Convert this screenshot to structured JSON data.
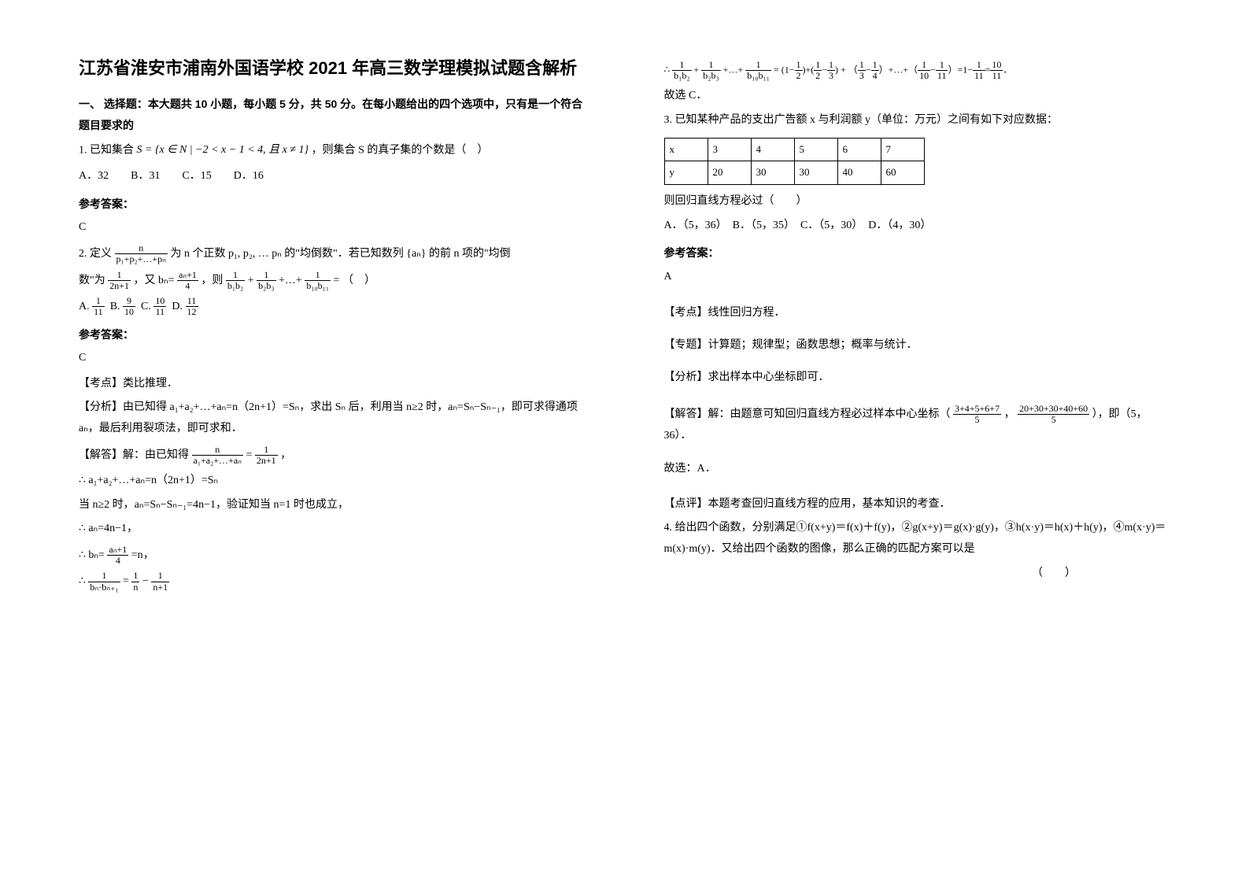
{
  "title": "江苏省淮安市浦南外国语学校 2021 年高三数学理模拟试题含解析",
  "section1_heading": "一、 选择题：本大题共 10 小题，每小题 5 分，共 50 分。在每小题给出的四个选项中，只有是一个符合题目要求的",
  "q1": {
    "stem_pre": "1. 已知集合 ",
    "set_expr": "S = {x ∈ N | −2 < x − 1 < 4,  且 x ≠ 1}",
    "stem_post": "，则集合 S 的真子集的个数是（　）",
    "options": "A．32　　B．31　　C．15　　D．16",
    "answer": "C"
  },
  "answer_label": "参考答案：",
  "q2": {
    "stem_l1_a": "2. 定义",
    "frac1_num": "n",
    "frac1_den": "p₁+p₂+…+pₙ",
    "stem_l1_b": "为 n 个正数 p₁, p₂, … pₙ 的\"均倒数\"．若已知数列 {aₙ} 的前 n 项的\"均倒",
    "stem_l2_a": "数\"为",
    "frac2_num": "1",
    "frac2_den": "2n+1",
    "stem_l2_b": "，又",
    "bn_eq": "bₙ=",
    "frac3_num": "aₙ+1",
    "frac3_den": "4",
    "stem_l2_c": "，则",
    "sum_terms": " = （　）",
    "opt_a_num": "1",
    "opt_a_den": "11",
    "opt_b_num": "9",
    "opt_b_den": "10",
    "opt_c_num": "10",
    "opt_c_den": "11",
    "opt_d_num": "11",
    "opt_d_den": "12",
    "answer": "C",
    "tag_point": "【考点】类比推理．",
    "analysis": "【分析】由已知得 a₁+a₂+…+aₙ=n（2n+1）=Sₙ，求出 Sₙ 后，利用当 n≥2 时，aₙ=Sₙ−Sₙ₋₁，即可求得通项 aₙ，最后利用裂项法，即可求和．",
    "sol_l1": "【解答】解：由已知得",
    "sol_frac1_num": "n",
    "sol_frac1_den": "a₁+a₂+…+aₙ",
    "sol_eq": "=",
    "sol_frac2_num": "1",
    "sol_frac2_den": "2n+1",
    "sol_l2": "∴ a₁+a₂+…+aₙ=n（2n+1）=Sₙ",
    "sol_l3": "当 n≥2 时，aₙ=Sₙ−Sₙ₋₁=4n−1，验证知当 n=1 时也成立，",
    "sol_l4": "∴ aₙ=4n−1，",
    "sol_l5_pre": "∴ ",
    "sol_l5_bn": "bₙ=",
    "sol_l5_num": "aₙ+1",
    "sol_l5_den": "4",
    "sol_l5_post": "=n",
    "sol_l6_pre": "∴ ",
    "sol_l6_f1n": "1",
    "sol_l6_f1d": "bₙ·bₙ₊₁",
    "sol_l6_eq": "=",
    "sol_l6_f2n": "1",
    "sol_l6_f2d": "n",
    "sol_l6_minus": " − ",
    "sol_l6_f3n": "1",
    "sol_l6_f3d": "n+1"
  },
  "col2_top": {
    "pre": "∴ ",
    "t1n": "1",
    "t1d": "b₁b₂",
    "plus1": "+",
    "t2n": "1",
    "t2d": "b₂b₃",
    "dots": "+…+",
    "t3n": "1",
    "t3d": "b₁₀b₁₁",
    "eq1": " = ",
    "p1": "(1−",
    "f1n": "1",
    "f1d": "2",
    "p1b": ")+(",
    "f2n": "1",
    "f2d": "2",
    "minus": "−",
    "f3n": "1",
    "f3d": "3",
    "p2": ") + （",
    "f4n": "1",
    "f4d": "3",
    "m2": "−",
    "f5n": "1",
    "f5d": "4",
    "p3": "）+…+（",
    "f6n": "1",
    "f6d": "10",
    "m3": "−",
    "f7n": "1",
    "f7d": "11",
    "p4": "）=1−",
    "f8n": "1",
    "f8d": "11",
    "eq2": "=",
    "f9n": "10",
    "f9d": "11",
    "end": "．",
    "conclude": "故选 C．"
  },
  "q3": {
    "stem": "3. 已知某种产品的支出广告额 x 与利润额 y（单位：万元）之间有如下对应数据：",
    "table": {
      "header": [
        "x",
        "3",
        "4",
        "5",
        "6",
        "7"
      ],
      "row": [
        "y",
        "20",
        "30",
        "30",
        "40",
        "60"
      ]
    },
    "q": "则回归直线方程必过（　　）",
    "options": "A．（5，36）　B．（5，35）　C．（5，30）　D．（4，30）",
    "answer": "A",
    "tag_point": "【考点】线性回归方程．",
    "tag_topic": "【专题】计算题；规律型；函数思想；概率与统计．",
    "analysis": "【分析】求出样本中心坐标即可．",
    "sol_pre": "【解答】解：由题意可知回归直线方程必过样本中心坐标（",
    "mean_x_num": "3+4+5+6+7",
    "mean_x_den": "5",
    "comma": "，",
    "mean_y_num": "20+30+30+40+60",
    "mean_y_den": "5",
    "sol_post": "），即（5，36）．",
    "conclude": "故选：A．",
    "review": "【点评】本题考查回归直线方程的应用，基本知识的考查．"
  },
  "q4": {
    "stem": "4. 给出四个函数，分别满足①f(x+y)＝f(x)＋f(y)，②g(x+y)＝g(x)·g(y)，③h(x·y)＝h(x)＋h(y)，④m(x·y)＝m(x)·m(y)．又给出四个函数的图像，那么正确的匹配方案可以是",
    "blank": "（　　）"
  }
}
